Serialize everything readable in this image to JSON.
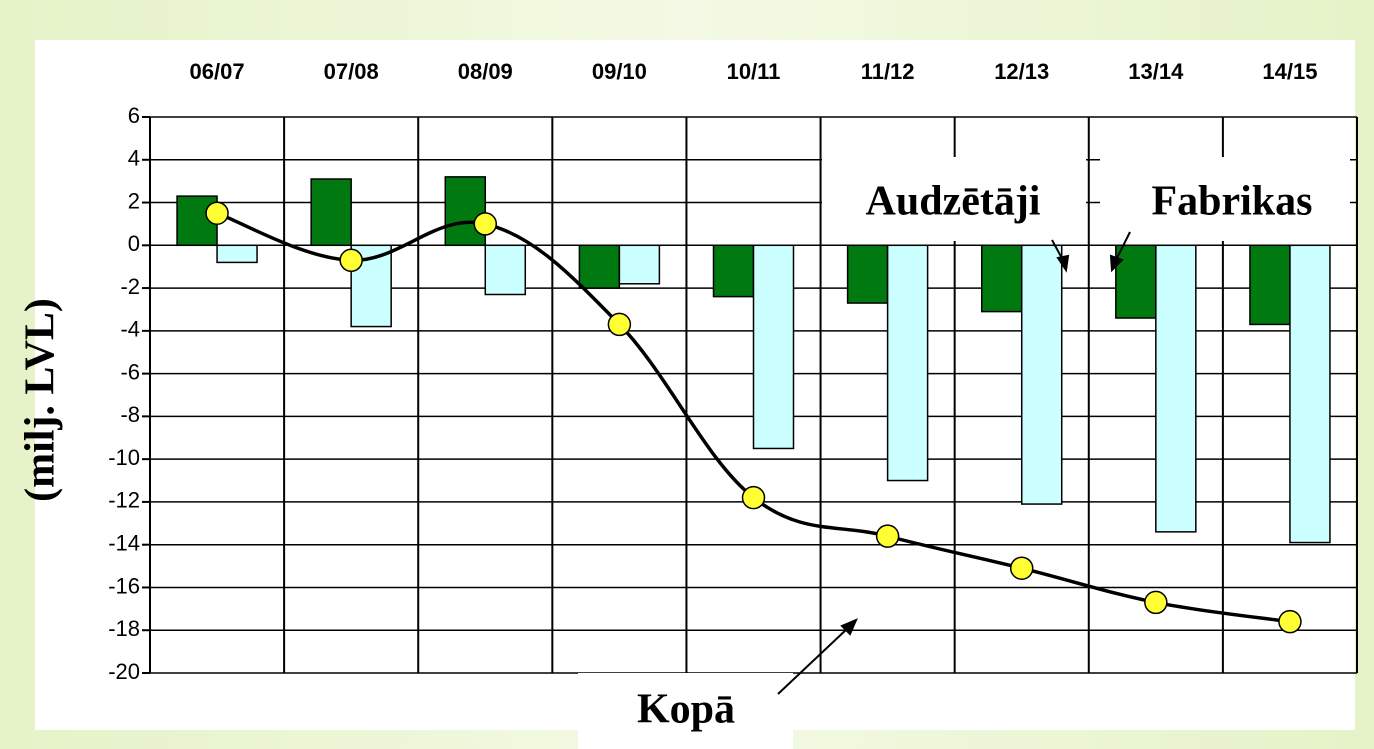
{
  "chart_data": {
    "type": "bar",
    "ylabel": "(milj. LVL)",
    "categories": [
      "06/07",
      "07/08",
      "08/09",
      "09/10",
      "10/11",
      "11/12",
      "12/13",
      "13/14",
      "14/15"
    ],
    "series": [
      {
        "name": "Fabrikas",
        "type": "bar",
        "color": "#007a10",
        "values": [
          2.3,
          3.1,
          3.2,
          -2.0,
          -2.4,
          -2.7,
          -3.1,
          -3.4,
          -3.7
        ]
      },
      {
        "name": "Audzētāji",
        "type": "bar",
        "color": "#ccffff",
        "values": [
          -0.8,
          -3.8,
          -2.3,
          -1.8,
          -9.5,
          -11.0,
          -12.1,
          -13.4,
          -13.9
        ]
      },
      {
        "name": "Kopā",
        "type": "line",
        "color": "#000000",
        "marker_color": "#ffff33",
        "values": [
          1.5,
          -0.7,
          1.0,
          -3.7,
          -11.8,
          -13.6,
          -15.1,
          -16.7,
          -17.6
        ]
      }
    ],
    "ylim": [
      -20,
      6
    ],
    "yticks": [
      -20,
      -18,
      -16,
      -14,
      -12,
      -10,
      -8,
      -6,
      -4,
      -2,
      0,
      2,
      4,
      6
    ],
    "grid": true
  }
}
